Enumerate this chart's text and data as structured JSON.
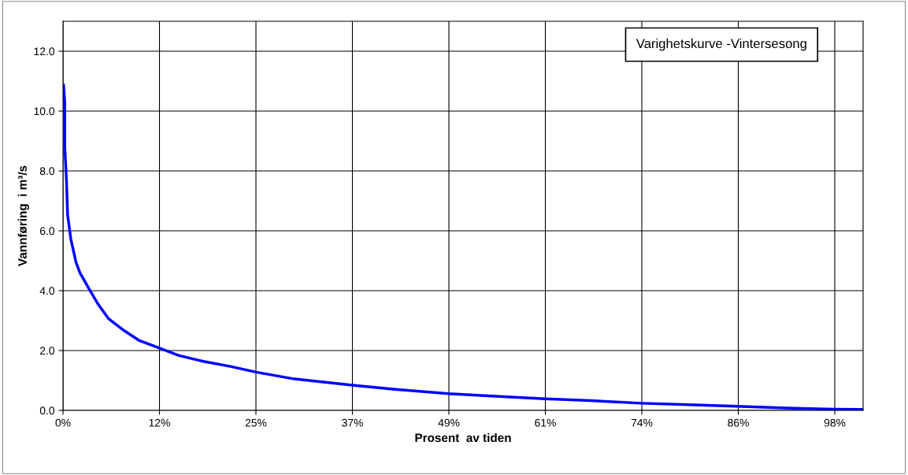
{
  "chart_data": {
    "type": "line",
    "title": "Varighetskurve -Vintersesong",
    "xlabel": "Prosent  av tiden",
    "ylabel": "Vannføring  i m³/s",
    "x": [
      0.07,
      0.23,
      0.23,
      0.43,
      0.59,
      0.99,
      1.65,
      2.14,
      3.29,
      4.45,
      5.76,
      7.74,
      9.71,
      12.25,
      14.65,
      17.95,
      21.24,
      24.5,
      29.4,
      36.75,
      41.9,
      48.95,
      54.4,
      61.15,
      66.9,
      73.4,
      79.4,
      85.5,
      91.9,
      98,
      101.6
    ],
    "series": [
      {
        "color": "#0000ff",
        "values": [
          10.87,
          10.28,
          8.79,
          7.74,
          6.52,
          5.73,
          4.95,
          4.6,
          4.07,
          3.55,
          3.07,
          2.67,
          2.33,
          2.08,
          1.84,
          1.63,
          1.47,
          1.28,
          1.05,
          0.84,
          0.71,
          0.56,
          0.48,
          0.39,
          0.33,
          0.24,
          0.19,
          0.14,
          0.08,
          0.04,
          0.03
        ]
      }
    ],
    "xlim": [
      0,
      101.6
    ],
    "xticks": [
      {
        "value": 0,
        "label": "0%"
      },
      {
        "value": 12.25,
        "label": "12%"
      },
      {
        "value": 24.5,
        "label": "25%"
      },
      {
        "value": 36.75,
        "label": "37%"
      },
      {
        "value": 49,
        "label": "49%"
      },
      {
        "value": 61.25,
        "label": "61%"
      },
      {
        "value": 73.5,
        "label": "74%"
      },
      {
        "value": 85.75,
        "label": "86%"
      },
      {
        "value": 98,
        "label": "98%"
      }
    ],
    "ylim": [
      0,
      13
    ],
    "yticks": [
      {
        "value": 0,
        "label": "0.0"
      },
      {
        "value": 2,
        "label": "2.0"
      },
      {
        "value": 4,
        "label": "4.0"
      },
      {
        "value": 6,
        "label": "6.0"
      },
      {
        "value": 8,
        "label": "8.0"
      },
      {
        "value": 10,
        "label": "10.0"
      },
      {
        "value": 12,
        "label": "12.0"
      }
    ],
    "grid": true,
    "marker": "none",
    "line_style": "solid"
  }
}
